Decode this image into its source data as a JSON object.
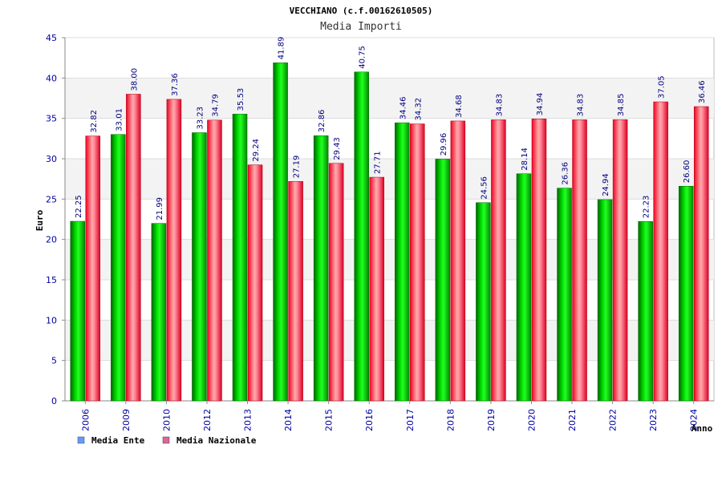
{
  "chart_data": {
    "type": "bar",
    "title": "VECCHIANO (c.f.00162610505)",
    "subtitle": "Media Importi",
    "xlabel": "Anno",
    "ylabel": "Euro",
    "ylim": [
      0,
      45
    ],
    "yticks": [
      "0",
      "5",
      "10",
      "15",
      "20",
      "25",
      "30",
      "35",
      "40",
      "45"
    ],
    "categories": [
      "2006",
      "2009",
      "2010",
      "2012",
      "2013",
      "2014",
      "2015",
      "2016",
      "2017",
      "2018",
      "2019",
      "2020",
      "2021",
      "2022",
      "2023",
      "2024"
    ],
    "series": [
      {
        "name": "Media Ente",
        "color": "#00cc00",
        "legend_color": "#6699ff",
        "values": [
          22.25,
          33.01,
          21.99,
          33.23,
          35.53,
          41.89,
          32.86,
          40.75,
          34.46,
          29.96,
          24.56,
          28.14,
          26.36,
          24.94,
          22.23,
          26.6
        ],
        "labels": [
          "22.25",
          "33.01",
          "21.99",
          "33.23",
          "35.53",
          "41.89",
          "32.86",
          "40.75",
          "34.46",
          "29.96",
          "24.56",
          "28.14",
          "26.36",
          "24.94",
          "22.23",
          "26.60"
        ]
      },
      {
        "name": "Media Nazionale",
        "color": "#ee1133",
        "legend_color": "#dd6699",
        "values": [
          32.82,
          38.0,
          37.36,
          34.79,
          29.24,
          27.19,
          29.43,
          27.71,
          34.32,
          34.68,
          34.83,
          34.94,
          34.83,
          34.85,
          37.05,
          36.46
        ],
        "labels": [
          "32.82",
          "38.00",
          "37.36",
          "34.79",
          "29.24",
          "27.19",
          "29.43",
          "27.71",
          "34.32",
          "34.68",
          "34.83",
          "34.94",
          "34.83",
          "34.85",
          "37.05",
          "36.46"
        ]
      }
    ],
    "grid": true
  }
}
